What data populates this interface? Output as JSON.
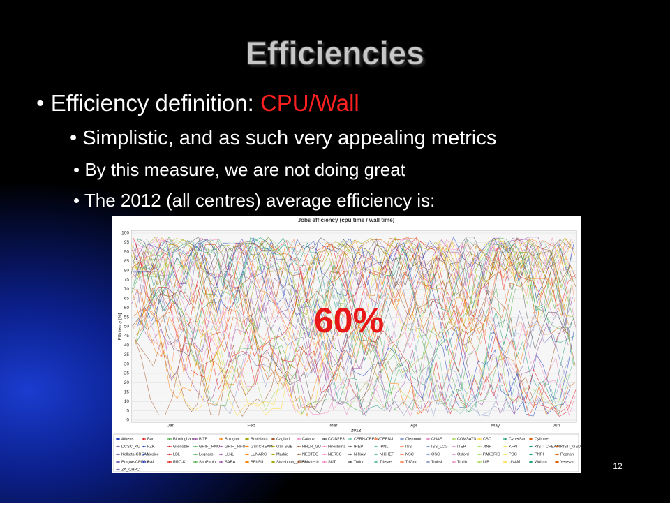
{
  "slide": {
    "title": "Efficiencies",
    "bullet": {
      "text": "Efficiency definition: ",
      "highlight": "CPU/Wall"
    },
    "sub_bullets": [
      "Simplistic, and as such very appealing metrics",
      "By this measure, we are not doing great",
      "The 2012 (all centres) average efficiency is:"
    ],
    "page_number": "12"
  },
  "figure": {
    "title": "Jobs efficiency (cpu time / wall time)",
    "y_label": "Efficiency [%]",
    "ylim": [
      0,
      100
    ],
    "yticks": [
      0,
      5,
      10,
      15,
      20,
      25,
      30,
      35,
      40,
      45,
      50,
      55,
      60,
      65,
      70,
      75,
      80,
      85,
      90,
      95,
      100
    ],
    "months": [
      "Jan",
      "Feb",
      "Mar",
      "Apr",
      "May",
      "Jun"
    ],
    "year_label": "2012",
    "overlay": "60%",
    "legend": [
      [
        "Athens",
        "Bari",
        "Birmingham",
        "BITP",
        "Bologna",
        "Bratislava",
        "Cagliari",
        "Catania",
        "CCIN2P3",
        "CERN-CREAM",
        "CERN-L",
        "Clermont",
        "CNAF",
        "COMSATS",
        "CSC",
        "CyberSar",
        "Cyfronet"
      ],
      [
        "DCSC_KU",
        "FZK",
        "Grenoble",
        "GRIF_IPNO",
        "GRIF_IRFU",
        "GSI-CREAM",
        "GSI-SGE",
        "HHLR_GU",
        "Hiroshima",
        "IHEP",
        "IPNL",
        "ISS",
        "ISS_LCG",
        "ITEP",
        "JINR",
        "KFKI",
        "KISTI-CREAM",
        "KISTI_GSDC"
      ],
      [
        "Kolkata-CREAM",
        "Kosice",
        "LBL",
        "Legnaro",
        "LLNL",
        "LUNARC",
        "Madrid",
        "NECTEC",
        "NERSC",
        "NIHAM",
        "NIKHEF",
        "NSC",
        "OSC",
        "Oxford",
        "PAKGRID",
        "PDC",
        "PNPI",
        "Poznan"
      ],
      [
        "Prague-CREAM",
        "RAL",
        "RRC-KI",
        "SaoPaulo",
        "SARA",
        "SPbSU",
        "Strasbourg_IRES",
        "Subatech",
        "SUT",
        "Torino",
        "Trieste",
        "TriGrid",
        "Troitsk",
        "Trujillo",
        "UiB",
        "UNAM",
        "Wuhan",
        "Yerevan"
      ],
      [
        "ZA_CHPC"
      ]
    ]
  }
}
